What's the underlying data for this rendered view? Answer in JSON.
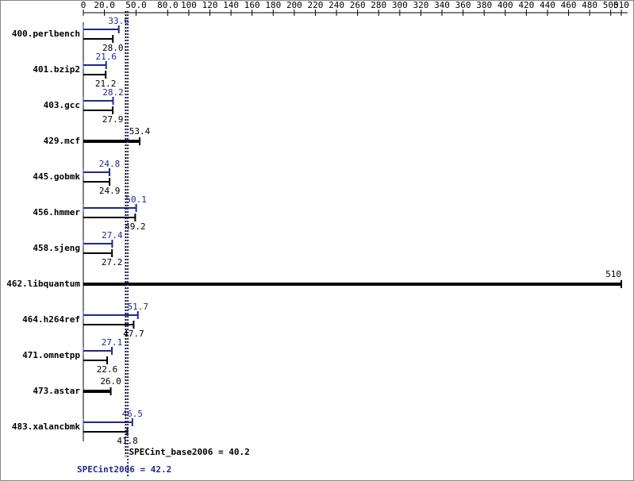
{
  "chart_data": {
    "type": "bar",
    "orientation": "horizontal",
    "categories": [
      "400.perlbench",
      "401.bzip2",
      "403.gcc",
      "429.mcf",
      "445.gobmk",
      "456.hmmer",
      "458.sjeng",
      "462.libquantum",
      "464.h264ref",
      "471.omnetpp",
      "473.astar",
      "483.xalancbmk"
    ],
    "series": [
      {
        "color": "#1f2a8c",
        "values": [
          33.6,
          21.6,
          28.2,
          null,
          24.8,
          50.1,
          27.4,
          null,
          51.7,
          27.1,
          null,
          46.5
        ],
        "value_labels": [
          "33.6",
          "21.6",
          "28.2",
          null,
          "24.8",
          "50.1",
          "27.4",
          null,
          "51.7",
          "27.1",
          null,
          "46.5"
        ]
      },
      {
        "color": "#000000",
        "values": [
          28.0,
          21.2,
          27.9,
          53.4,
          24.9,
          49.2,
          27.2,
          510,
          47.7,
          22.6,
          26.0,
          41.8
        ],
        "value_labels": [
          "28.0",
          "21.2",
          "27.9",
          "53.4",
          "24.9",
          "49.2",
          "27.2",
          "510",
          "47.7",
          "22.6",
          "26.0",
          "41.8"
        ]
      }
    ],
    "xlim": [
      0,
      510
    ],
    "xticks": [
      0,
      {
        "value": 20,
        "label": "20.0"
      },
      {
        "value": 50,
        "label": "50.0"
      },
      {
        "value": 80,
        "label": "80.0"
      },
      100,
      120,
      140,
      160,
      180,
      200,
      220,
      240,
      260,
      280,
      300,
      320,
      340,
      360,
      380,
      400,
      420,
      440,
      460,
      480,
      500,
      510
    ],
    "reference_lines": [
      {
        "label": "SPECint_base2006 = 40.2",
        "value": 40.2,
        "color": "#000000"
      },
      {
        "label": "SPECint2006 = 42.2",
        "value": 42.2,
        "color": "#1f2a8c"
      }
    ]
  }
}
